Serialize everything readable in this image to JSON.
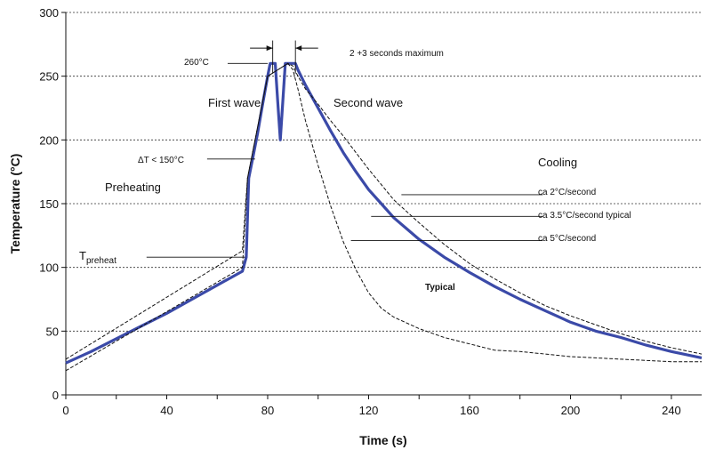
{
  "chart_data": {
    "type": "line",
    "xlabel": "Time (s)",
    "ylabel": "Temperature (°C)",
    "xlim": [
      0,
      252
    ],
    "ylim": [
      0,
      300
    ],
    "xticks": [
      0,
      40,
      80,
      120,
      160,
      200,
      240
    ],
    "yticks": [
      0,
      50,
      100,
      150,
      200,
      250,
      300
    ],
    "grid": "horizontal dashed",
    "series": [
      {
        "style": "thick solid",
        "color": "#3b4aa8",
        "x": [
          0,
          10,
          20,
          30,
          40,
          50,
          60,
          70,
          71.5,
          72.5,
          74,
          76,
          78,
          80,
          81,
          82,
          83,
          84,
          85,
          86,
          87,
          88,
          90,
          91,
          92,
          95,
          100,
          105,
          110,
          115,
          120,
          125,
          130,
          140,
          150,
          160,
          170,
          180,
          190,
          200,
          210,
          220,
          230,
          240,
          252
        ],
        "y": [
          25,
          34,
          44,
          54,
          64,
          75,
          86,
          97,
          108,
          170,
          185,
          205,
          228,
          250,
          260,
          260,
          260,
          230,
          200,
          230,
          260,
          260,
          260,
          260,
          255,
          243,
          225,
          207,
          190,
          175,
          161,
          150,
          139,
          122,
          108,
          96,
          85,
          75,
          66,
          57,
          50,
          45,
          39,
          34,
          29
        ]
      },
      {
        "style": "dashed",
        "color": "#111111",
        "x": [
          0,
          70,
          72,
          80,
          88,
          90,
          92,
          95,
          100,
          105,
          110,
          115,
          120,
          125,
          130,
          140,
          150,
          160,
          170,
          180,
          190,
          200,
          210,
          220,
          230,
          240,
          252
        ],
        "y": [
          28,
          113,
          170,
          250,
          260,
          258,
          250,
          240,
          228,
          215,
          203,
          190,
          177,
          165,
          153,
          135,
          118,
          103,
          91,
          80,
          70,
          62,
          55,
          48,
          42,
          37,
          32
        ]
      },
      {
        "style": "dashed",
        "color": "#111111",
        "x": [
          0,
          70,
          72,
          80,
          88,
          90,
          92,
          95,
          100,
          105,
          110,
          115,
          120,
          125,
          130,
          140,
          150,
          160,
          170,
          180,
          190,
          200,
          210,
          220,
          230,
          240,
          252
        ],
        "y": [
          19,
          100,
          170,
          250,
          260,
          255,
          240,
          215,
          180,
          148,
          120,
          98,
          80,
          68,
          61,
          52,
          45,
          40,
          35,
          34,
          32,
          30,
          29,
          28,
          27,
          26,
          26
        ]
      }
    ],
    "annotations": {
      "peak_temp": "260°C",
      "duration": "2 +3 seconds maximum",
      "first_wave": "First wave",
      "second_wave": "Second wave",
      "delta_t": "ΔT < 150°C",
      "preheating": "Preheating",
      "cooling": "Cooling",
      "t_preheat_main": "T",
      "t_preheat_sub": "preheat",
      "rate_slow": "ca 2°C/second",
      "rate_typical": "ca 3.5°C/second typical",
      "rate_fast": "ca 5°C/second",
      "typical": "Typical"
    }
  }
}
